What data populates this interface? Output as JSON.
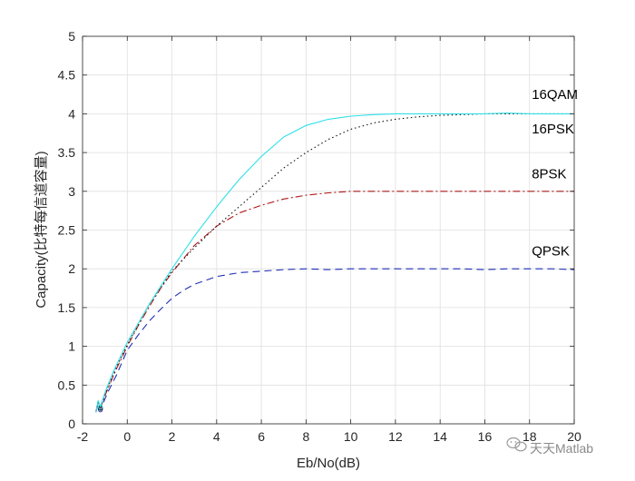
{
  "chart_data": {
    "type": "line",
    "title": "",
    "xlabel": "Eb/No(dB)",
    "ylabel": "Capacity(比特每信道容量)",
    "xlim": [
      -2,
      20
    ],
    "ylim": [
      0,
      5
    ],
    "x_ticks": [
      -2,
      0,
      2,
      4,
      6,
      8,
      10,
      12,
      14,
      16,
      18,
      20
    ],
    "y_ticks": [
      0,
      0.5,
      1,
      1.5,
      2,
      2.5,
      3,
      3.5,
      4,
      4.5,
      5
    ],
    "x_tick_labels": [
      "-2",
      "0",
      "2",
      "4",
      "6",
      "8",
      "10",
      "12",
      "14",
      "16",
      "18",
      "20"
    ],
    "y_tick_labels": [
      "0",
      "0.5",
      "1",
      "1.5",
      "2",
      "2.5",
      "3",
      "3.5",
      "4",
      "4.5",
      "5"
    ],
    "grid": true,
    "series": [
      {
        "name": "QPSK",
        "color": "#1f2fb4",
        "dash": "8,5",
        "x": [
          -1.4,
          -1.3,
          -1.2,
          -1.0,
          -0.8,
          -0.5,
          0,
          0.5,
          1,
          1.5,
          2,
          2.5,
          3,
          4,
          5,
          6,
          7,
          8,
          9,
          10,
          11,
          12,
          13,
          14,
          15,
          16,
          17,
          18,
          19,
          20
        ],
        "y": [
          0.15,
          0.26,
          0.18,
          0.32,
          0.45,
          0.62,
          0.95,
          1.15,
          1.33,
          1.48,
          1.62,
          1.72,
          1.8,
          1.9,
          1.95,
          1.97,
          1.99,
          2.0,
          1.99,
          2.0,
          2.0,
          2.0,
          2.0,
          2.0,
          2.0,
          1.99,
          2.0,
          2.0,
          2.0,
          1.99
        ]
      },
      {
        "name": "8PSK",
        "color": "#b01818",
        "dash": "8,3,2,3",
        "x": [
          -1.4,
          -1.3,
          -1.2,
          -1.0,
          -0.8,
          -0.5,
          0,
          0.5,
          1,
          1.5,
          2,
          3,
          4,
          5,
          6,
          7,
          8,
          9,
          10,
          11,
          12,
          13,
          14,
          15,
          16,
          17,
          18,
          19,
          20
        ],
        "y": [
          0.16,
          0.28,
          0.2,
          0.36,
          0.5,
          0.7,
          1.0,
          1.27,
          1.52,
          1.75,
          1.95,
          2.3,
          2.55,
          2.72,
          2.82,
          2.9,
          2.95,
          2.98,
          3.0,
          3.0,
          3.0,
          3.0,
          3.0,
          3.0,
          3.0,
          3.0,
          3.0,
          3.0,
          3.0
        ]
      },
      {
        "name": "16PSK",
        "color": "#111111",
        "dash": "1.5,3",
        "x": [
          -1.4,
          -1.3,
          -1.2,
          -1.0,
          -0.8,
          -0.5,
          0,
          1,
          2,
          3,
          4,
          5,
          6,
          7,
          8,
          9,
          10,
          11,
          12,
          13,
          14,
          15,
          16,
          17,
          18,
          19,
          20
        ],
        "y": [
          0.16,
          0.3,
          0.2,
          0.38,
          0.52,
          0.72,
          1.02,
          1.55,
          1.97,
          2.27,
          2.55,
          2.8,
          3.05,
          3.3,
          3.5,
          3.67,
          3.8,
          3.88,
          3.93,
          3.96,
          3.98,
          3.99,
          4.0,
          4.0,
          4.0,
          4.0,
          4.0
        ]
      },
      {
        "name": "16QAM",
        "color": "#2ee0e8",
        "dash": "",
        "x": [
          -1.4,
          -1.3,
          -1.2,
          -1.0,
          -0.8,
          -0.5,
          0,
          1,
          2,
          3,
          4,
          5,
          6,
          7,
          8,
          9,
          10,
          11,
          12,
          13,
          14,
          15,
          16,
          17,
          18,
          19,
          20
        ],
        "y": [
          0.15,
          0.3,
          0.22,
          0.4,
          0.55,
          0.75,
          1.05,
          1.55,
          2.0,
          2.42,
          2.8,
          3.15,
          3.45,
          3.7,
          3.85,
          3.93,
          3.97,
          3.99,
          4.0,
          4.0,
          4.0,
          4.0,
          4.0,
          4.01,
          4.0,
          4.0,
          4.0
        ]
      }
    ],
    "annotations": [
      {
        "text": "16QAM",
        "x": 18.1,
        "y": 4.19
      },
      {
        "text": "16PSK",
        "x": 18.1,
        "y": 3.75
      },
      {
        "text": "8PSK",
        "x": 18.1,
        "y": 3.17
      },
      {
        "text": "QPSK",
        "x": 18.1,
        "y": 2.17
      }
    ]
  },
  "watermark": {
    "text": "天天Matlab",
    "icon": "wechat-icon"
  }
}
